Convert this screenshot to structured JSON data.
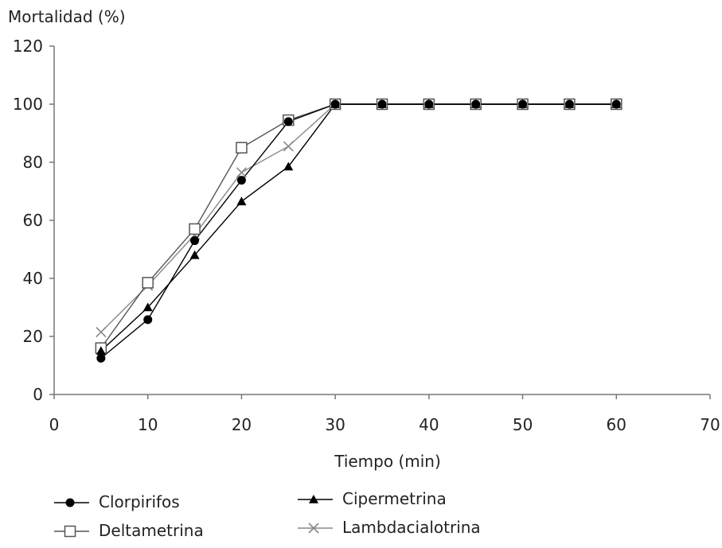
{
  "chart_data": {
    "type": "line",
    "xlabel": "Tiempo (min)",
    "ylabel": "Mortalidad (%)",
    "xlim": [
      0,
      70
    ],
    "ylim": [
      0,
      120
    ],
    "xticks": [
      0,
      10,
      20,
      30,
      40,
      50,
      60,
      70
    ],
    "yticks": [
      0,
      20,
      40,
      60,
      80,
      100,
      120
    ],
    "grid": false,
    "legend_position": "bottom-left",
    "x": [
      5,
      10,
      15,
      20,
      25,
      30,
      35,
      40,
      45,
      50,
      55,
      60
    ],
    "series": [
      {
        "name": "Clorpirifos",
        "marker": "filled-circle",
        "color": "#000000",
        "values": [
          12.5,
          25.8,
          53,
          73.8,
          94,
          100,
          100,
          100,
          100,
          100,
          100,
          100
        ]
      },
      {
        "name": "Cipermetrina",
        "marker": "filled-triangle",
        "color": "#000000",
        "values": [
          15,
          30,
          48,
          66.5,
          78.5,
          100,
          100,
          100,
          100,
          100,
          100,
          100
        ]
      },
      {
        "name": "Deltametrina",
        "marker": "open-square",
        "color": "#555555",
        "values": [
          16,
          38.5,
          57,
          85,
          94.5,
          100,
          100,
          100,
          100,
          100,
          100,
          100
        ]
      },
      {
        "name": "Lambdacialotrina",
        "marker": "x-cross",
        "color": "#888888",
        "values": [
          21.5,
          37.5,
          55,
          76.5,
          85.5,
          100,
          100,
          100,
          100,
          100,
          100,
          100
        ]
      }
    ]
  }
}
